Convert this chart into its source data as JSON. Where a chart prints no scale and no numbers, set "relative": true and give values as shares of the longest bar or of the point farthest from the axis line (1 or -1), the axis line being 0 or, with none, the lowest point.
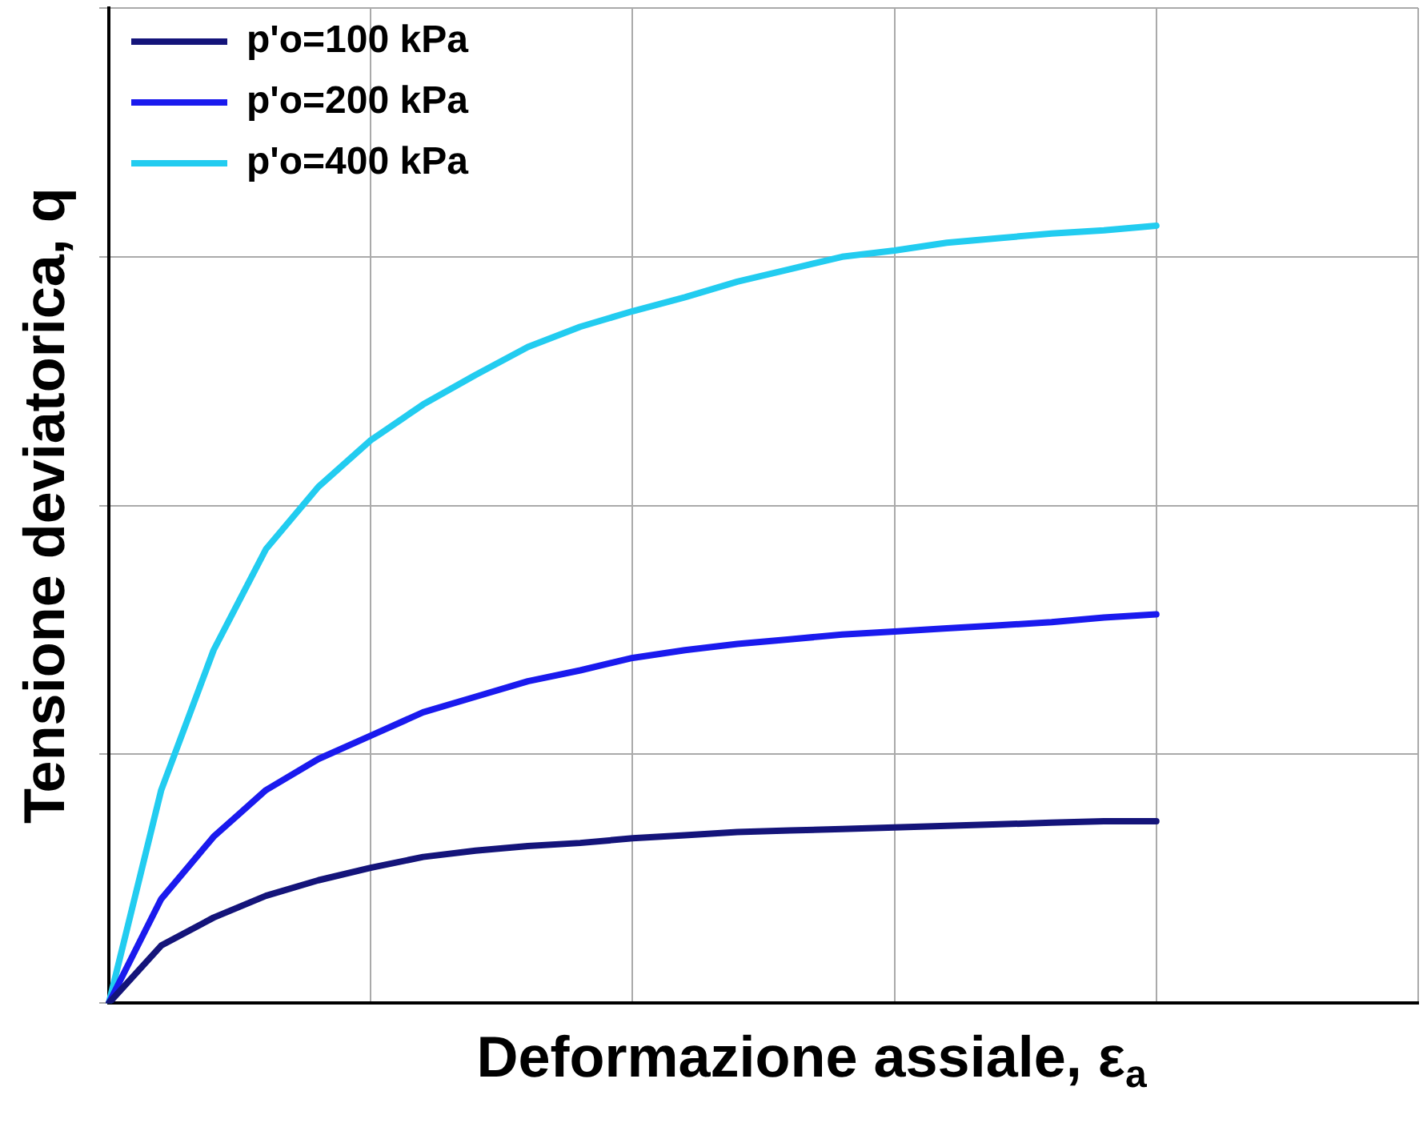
{
  "chart_data": {
    "type": "line",
    "relative": true,
    "xlabel": "Deformazione assiale, ε$_{a}$",
    "ylabel": "Tensione deviatorica, q",
    "grid": true,
    "legend": "top left",
    "marker": "none",
    "line_style": "solid",
    "categories": [
      null,
      null,
      null,
      null,
      null,
      null,
      null,
      null,
      null,
      null,
      null,
      null,
      null,
      null,
      null,
      null,
      null,
      null,
      null,
      null,
      null,
      null,
      null,
      null,
      null,
      null
    ],
    "series": [
      {
        "name": "p'o=100 kPa",
        "color": "#14147a",
        "values": [
          0,
          0.074,
          0.11,
          0.138,
          0.158,
          0.174,
          0.188,
          0.196,
          0.202,
          0.206,
          0.212,
          0.216,
          0.22,
          0.222,
          0.224,
          0.226,
          0.228,
          0.23,
          0.232,
          0.234,
          0.234,
          null,
          null,
          null,
          null,
          null
        ]
      },
      {
        "name": "p'o=200 kPa",
        "color": "#1a1aee",
        "values": [
          0,
          0.134,
          0.214,
          0.274,
          0.314,
          0.344,
          0.374,
          0.394,
          0.414,
          0.428,
          0.444,
          0.454,
          0.462,
          0.468,
          0.474,
          0.478,
          0.482,
          0.486,
          0.49,
          0.496,
          0.5,
          null,
          null,
          null,
          null,
          null
        ]
      },
      {
        "name": "p'o=400 kPa",
        "color": "#22ccf0",
        "values": [
          0,
          0.274,
          0.454,
          0.584,
          0.664,
          0.724,
          0.77,
          0.808,
          0.844,
          0.87,
          0.89,
          0.908,
          0.928,
          0.944,
          0.96,
          0.968,
          0.978,
          0.984,
          0.99,
          0.994,
          1,
          null,
          null,
          null,
          null,
          null
        ]
      }
    ]
  }
}
